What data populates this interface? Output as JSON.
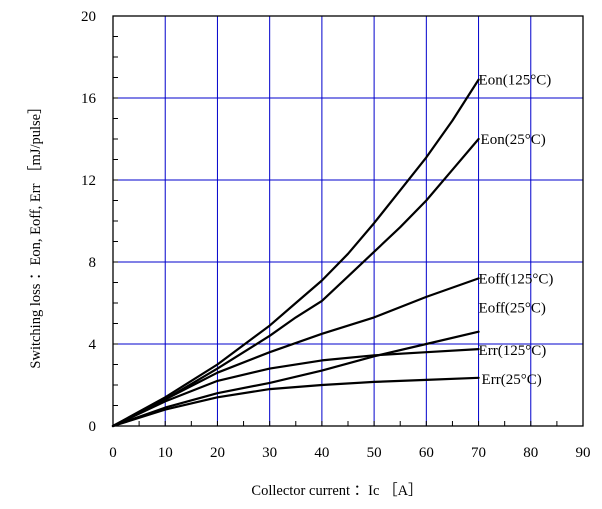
{
  "chart_data": {
    "type": "line",
    "xlabel": "Collector current ：Ic ［A］",
    "ylabel": "Switching loss ：Eon, Eoff, Err ［mJ/pulse］",
    "xlim": [
      0,
      90
    ],
    "ylim": [
      0,
      20
    ],
    "x_ticks": [
      0,
      10,
      20,
      30,
      40,
      50,
      60,
      70,
      80,
      90
    ],
    "y_ticks": [
      0,
      4,
      8,
      12,
      16,
      20
    ],
    "x_minor_step": 5,
    "y_minor_step": 1,
    "grid": true,
    "grid_color": "#0000cc",
    "line_color": "#000000",
    "series": [
      {
        "name": "Eon(125°C)",
        "x": [
          0,
          10,
          20,
          30,
          35,
          40,
          45,
          50,
          55,
          60,
          65,
          70
        ],
        "y": [
          0,
          1.4,
          3.0,
          4.9,
          6.0,
          7.1,
          8.4,
          9.9,
          11.5,
          13.1,
          14.9,
          16.9
        ]
      },
      {
        "name": "Eon(25°C)",
        "x": [
          0,
          10,
          20,
          30,
          35,
          40,
          45,
          50,
          55,
          60,
          65,
          70
        ],
        "y": [
          0,
          1.3,
          2.8,
          4.4,
          5.3,
          6.1,
          7.3,
          8.5,
          9.7,
          11.0,
          12.5,
          14.0
        ]
      },
      {
        "name": "Eoff(125°C)",
        "x": [
          0,
          10,
          20,
          30,
          40,
          50,
          60,
          70
        ],
        "y": [
          0,
          1.3,
          2.6,
          3.6,
          4.5,
          5.3,
          6.3,
          7.2
        ]
      },
      {
        "name": "Eoff(25°C)",
        "x": [
          0,
          10,
          20,
          30,
          40,
          50,
          60,
          70
        ],
        "y": [
          0,
          0.9,
          1.6,
          2.1,
          2.7,
          3.4,
          4.0,
          4.6
        ]
      },
      {
        "name": "Err(125°C)",
        "x": [
          0,
          10,
          20,
          30,
          40,
          50,
          60,
          70
        ],
        "y": [
          0,
          1.2,
          2.2,
          2.8,
          3.2,
          3.45,
          3.6,
          3.75
        ]
      },
      {
        "name": "Err(25°C)",
        "x": [
          0,
          10,
          20,
          30,
          40,
          50,
          60,
          70
        ],
        "y": [
          0,
          0.8,
          1.4,
          1.8,
          2.0,
          2.15,
          2.25,
          2.35
        ]
      }
    ]
  }
}
